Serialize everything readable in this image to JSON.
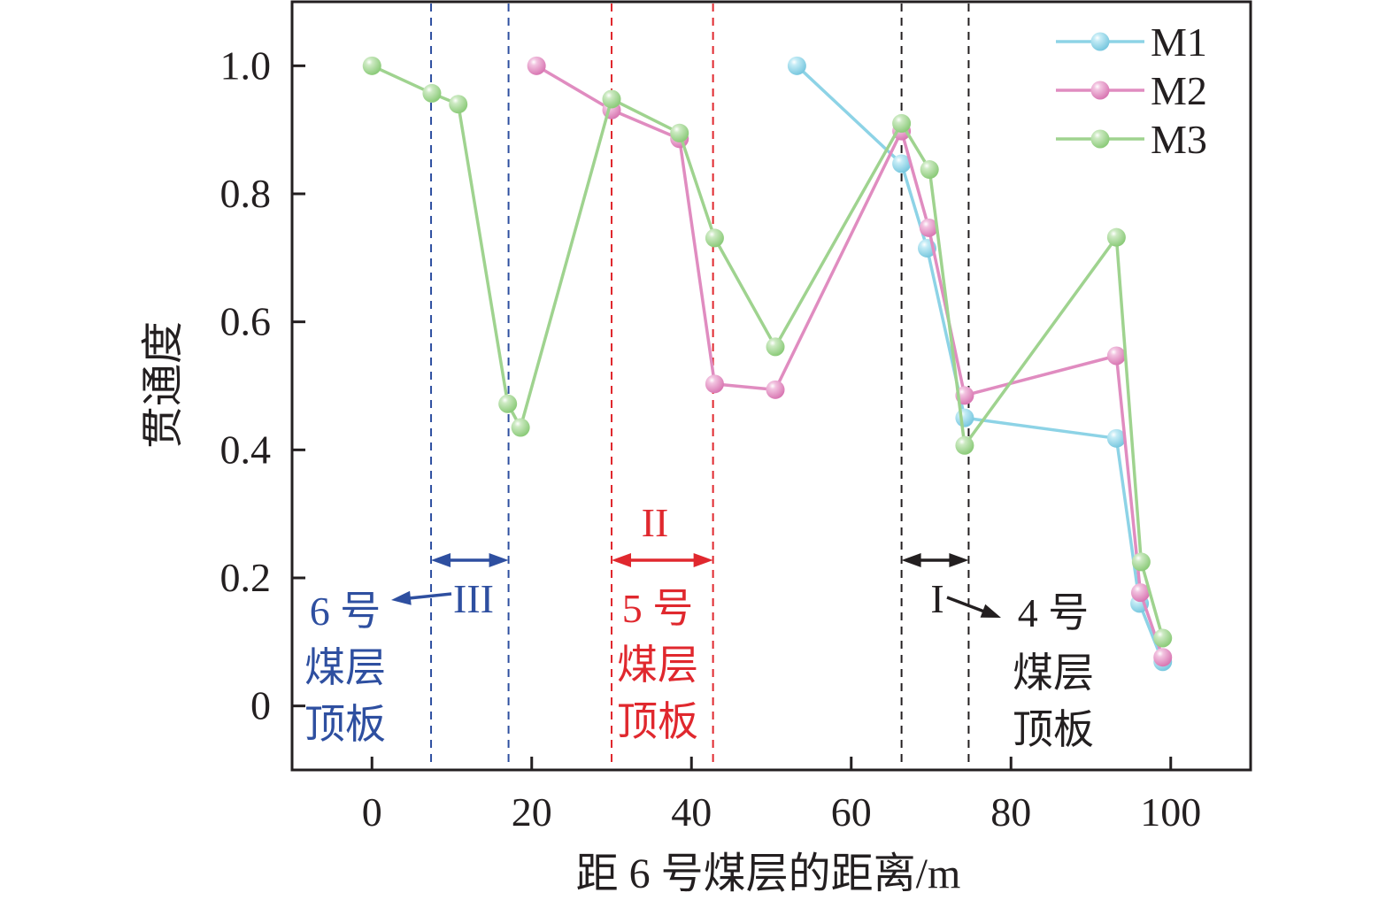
{
  "chart_data": {
    "type": "line",
    "title": "",
    "xlabel": "距 6 号煤层的距离/m",
    "ylabel": "贯通度",
    "xlim": [
      -10,
      110
    ],
    "ylim": [
      -0.1,
      1.1
    ],
    "xticks": [
      0,
      20,
      40,
      60,
      80,
      100
    ],
    "xtick_labels": [
      "0",
      "20",
      "40",
      "60",
      "80",
      "100"
    ],
    "yticks": [
      0,
      0.2,
      0.4,
      0.6,
      0.8,
      1.0
    ],
    "ytick_labels": [
      "0",
      "0.2",
      "0.4",
      "0.6",
      "0.8",
      "1.0"
    ],
    "grid": false,
    "legend_position": "top-right",
    "series": [
      {
        "name": "M1",
        "color": "#8dd3e6",
        "x": [
          53.2,
          66.3,
          69.5,
          74.2,
          93.2,
          96.1,
          99.0
        ],
        "y": [
          1.0,
          0.847,
          0.715,
          0.45,
          0.418,
          0.16,
          0.069
        ]
      },
      {
        "name": "M2",
        "color": "#e08cc0",
        "x": [
          20.6,
          30.0,
          38.5,
          42.9,
          50.5,
          66.3,
          69.7,
          74.2,
          93.2,
          96.2,
          99.0
        ],
        "y": [
          1.0,
          0.931,
          0.886,
          0.503,
          0.494,
          0.898,
          0.747,
          0.485,
          0.547,
          0.177,
          0.076
        ]
      },
      {
        "name": "M3",
        "color": "#9fd38f",
        "x": [
          0,
          7.5,
          10.8,
          17.0,
          18.6,
          30.0,
          38.5,
          42.9,
          50.5,
          66.3,
          69.8,
          74.2,
          93.2,
          96.3,
          99.0
        ],
        "y": [
          1.0,
          0.957,
          0.94,
          0.472,
          0.435,
          0.948,
          0.895,
          0.731,
          0.561,
          0.91,
          0.838,
          0.407,
          0.732,
          0.225,
          0.106
        ]
      }
    ],
    "zones": [
      {
        "label": "III",
        "color": "#2e4fa0",
        "x_range": [
          7.4,
          17.1
        ],
        "text_lines": [
          "6 号",
          "煤层",
          "顶板"
        ]
      },
      {
        "label": "II",
        "color": "#e0282e",
        "x_range": [
          30.0,
          42.7
        ],
        "text_lines": [
          "5 号",
          "煤层",
          "顶板"
        ]
      },
      {
        "label": "I",
        "color": "#231f20",
        "x_range": [
          66.3,
          74.7
        ],
        "text_lines": [
          "4 号",
          "煤层",
          "顶板"
        ]
      }
    ]
  }
}
